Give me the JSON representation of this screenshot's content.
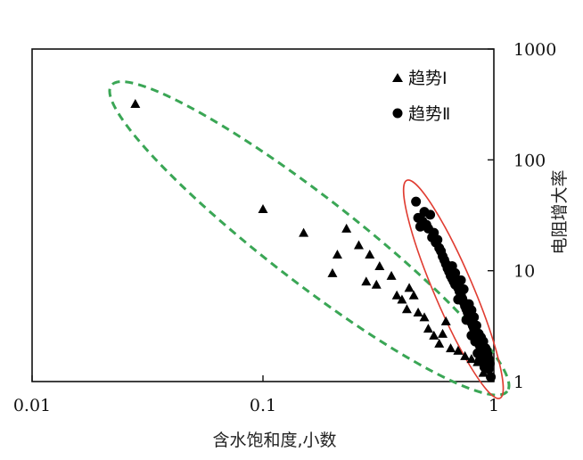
{
  "chart_data": {
    "type": "scatter",
    "xlabel": "含水饱和度,小数",
    "ylabel": "电阻增大率",
    "x_scale": "log",
    "y_scale": "log",
    "xlim": [
      0.01,
      1
    ],
    "ylim": [
      1,
      1000
    ],
    "x_ticks": [
      "0.01",
      "0.1",
      "1"
    ],
    "y_ticks": [
      "1",
      "10",
      "100",
      "1000"
    ],
    "grid": false,
    "legend_position": "top-right",
    "series": [
      {
        "name": "趋势Ⅰ",
        "marker": "triangle",
        "color": "#000000",
        "points": [
          [
            0.028,
            320
          ],
          [
            0.1,
            36
          ],
          [
            0.15,
            22
          ],
          [
            0.2,
            9.5
          ],
          [
            0.21,
            14
          ],
          [
            0.23,
            24
          ],
          [
            0.26,
            17
          ],
          [
            0.28,
            8
          ],
          [
            0.29,
            14
          ],
          [
            0.31,
            7.5
          ],
          [
            0.32,
            11
          ],
          [
            0.36,
            9
          ],
          [
            0.38,
            6
          ],
          [
            0.4,
            5.5
          ],
          [
            0.42,
            4.5
          ],
          [
            0.43,
            7
          ],
          [
            0.45,
            6
          ],
          [
            0.47,
            4.2
          ],
          [
            0.5,
            3.8
          ],
          [
            0.52,
            3
          ],
          [
            0.55,
            2.6
          ],
          [
            0.58,
            2.2
          ],
          [
            0.6,
            2.7
          ],
          [
            0.62,
            3.5
          ],
          [
            0.65,
            2
          ],
          [
            0.7,
            1.9
          ],
          [
            0.75,
            1.7
          ],
          [
            0.8,
            1.6
          ],
          [
            0.85,
            1.5
          ],
          [
            0.9,
            1.2
          ]
        ]
      },
      {
        "name": "趋势Ⅱ",
        "marker": "circle",
        "color": "#000000",
        "points": [
          [
            0.46,
            42
          ],
          [
            0.5,
            34
          ],
          [
            0.47,
            30
          ],
          [
            0.49,
            28
          ],
          [
            0.51,
            26
          ],
          [
            0.48,
            25
          ],
          [
            0.53,
            32
          ],
          [
            0.52,
            24
          ],
          [
            0.55,
            22
          ],
          [
            0.54,
            20
          ],
          [
            0.57,
            19
          ],
          [
            0.56,
            18
          ],
          [
            0.58,
            16
          ],
          [
            0.59,
            15
          ],
          [
            0.6,
            13.5
          ],
          [
            0.61,
            12.5
          ],
          [
            0.62,
            11.5
          ],
          [
            0.63,
            10.5
          ],
          [
            0.64,
            9.8
          ],
          [
            0.65,
            9
          ],
          [
            0.66,
            8.5
          ],
          [
            0.67,
            8
          ],
          [
            0.68,
            7.5
          ],
          [
            0.7,
            7
          ],
          [
            0.71,
            6.5
          ],
          [
            0.72,
            6
          ],
          [
            0.73,
            5.6
          ],
          [
            0.74,
            5.2
          ],
          [
            0.75,
            4.8
          ],
          [
            0.76,
            4.5
          ],
          [
            0.77,
            4.2
          ],
          [
            0.78,
            4
          ],
          [
            0.79,
            3.7
          ],
          [
            0.8,
            3.4
          ],
          [
            0.81,
            3.2
          ],
          [
            0.82,
            3
          ],
          [
            0.83,
            2.8
          ],
          [
            0.84,
            2.6
          ],
          [
            0.85,
            2.4
          ],
          [
            0.86,
            2.2
          ],
          [
            0.87,
            2.1
          ],
          [
            0.88,
            2
          ],
          [
            0.89,
            1.9
          ],
          [
            0.9,
            1.8
          ],
          [
            0.91,
            1.7
          ],
          [
            0.92,
            1.6
          ],
          [
            0.93,
            1.5
          ],
          [
            0.94,
            1.4
          ],
          [
            0.95,
            1.3
          ],
          [
            0.97,
            1.1
          ],
          [
            0.68,
            9.5
          ],
          [
            0.72,
            8.2
          ],
          [
            0.66,
            11
          ],
          [
            0.7,
            5.5
          ],
          [
            0.74,
            6.8
          ],
          [
            0.78,
            5
          ],
          [
            0.8,
            4.4
          ],
          [
            0.82,
            3.8
          ],
          [
            0.76,
            3.6
          ],
          [
            0.84,
            3.2
          ],
          [
            0.86,
            2.7
          ],
          [
            0.88,
            2.5
          ],
          [
            0.9,
            2.3
          ],
          [
            0.92,
            2
          ],
          [
            0.85,
            1.8
          ],
          [
            0.89,
            1.6
          ],
          [
            0.93,
            1.9
          ],
          [
            0.95,
            1.6
          ],
          [
            0.96,
            1.45
          ],
          [
            0.94,
            1.75
          ],
          [
            0.8,
            2.6
          ],
          [
            0.83,
            2.3
          ],
          [
            0.87,
            1.55
          ],
          [
            0.91,
            1.35
          ]
        ]
      }
    ],
    "envelopes": [
      {
        "series": "趋势Ⅰ",
        "style": "dashed",
        "color": "#3aa655"
      },
      {
        "series": "趋势Ⅱ",
        "style": "solid",
        "color": "#e03c31"
      }
    ]
  }
}
